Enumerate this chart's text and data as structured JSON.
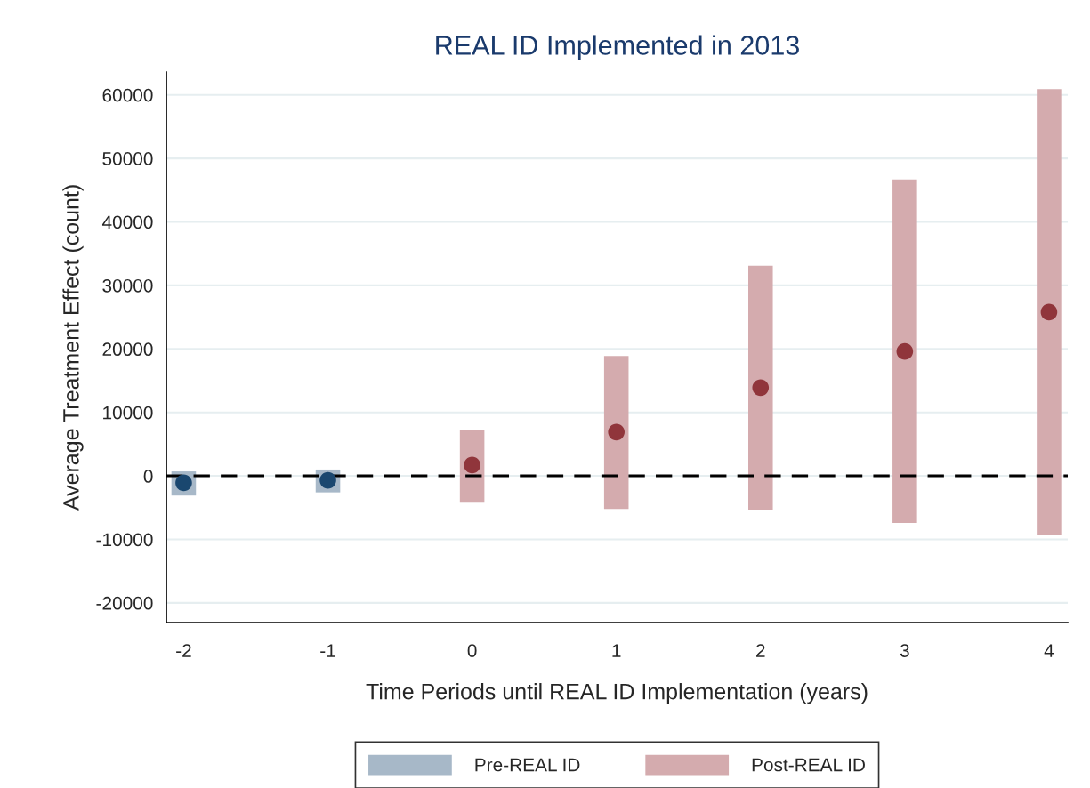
{
  "chart_data": {
    "type": "bar",
    "title": "REAL ID Implemented in 2013",
    "xlabel": "Time Periods until REAL ID Implementation (years)",
    "ylabel": "Average Treatment Effect (count)",
    "series": [
      {
        "name": "Pre-REAL ID",
        "color": "#a7b8c8",
        "x": [
          -2,
          -1
        ],
        "base": [
          -3100,
          -2600
        ],
        "values": [
          3800,
          3600
        ]
      },
      {
        "name": "Post-REAL ID",
        "color": "#d4abae",
        "x": [
          0,
          1,
          2,
          3,
          4
        ],
        "base": [
          -4100,
          -5200,
          -5300,
          -7400,
          -9300
        ],
        "values": [
          11400,
          24100,
          38400,
          54100,
          70200
        ]
      },
      {
        "type": "scatter",
        "color": "#1a476f",
        "x": [
          -2,
          -1
        ],
        "values": [
          -1100,
          -700
        ]
      },
      {
        "type": "scatter",
        "color": "#90353b",
        "x": [
          0,
          1,
          2,
          3,
          4
        ],
        "values": [
          1700,
          6900,
          13900,
          19600,
          25800
        ]
      }
    ],
    "ref_lines": [
      {
        "axis": "y",
        "value": 0,
        "color": "#000000",
        "line_style": "dashed"
      }
    ],
    "xlim": [
      -2.12,
      4.13
    ],
    "xticks": [
      -2,
      -1,
      0,
      1,
      2,
      3,
      4
    ],
    "ylim": [
      -23100,
      63600
    ],
    "yticks": [
      -20000,
      -10000,
      0,
      10000,
      20000,
      30000,
      40000,
      50000,
      60000
    ],
    "grid": "y",
    "legend": "bottom",
    "marker": "circle"
  }
}
